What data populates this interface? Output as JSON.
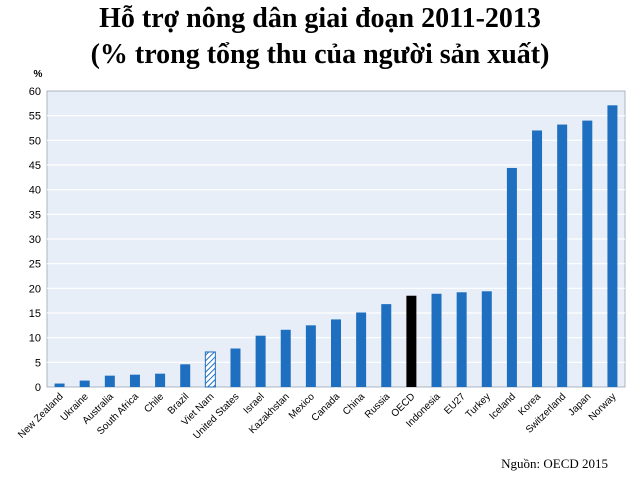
{
  "title_line1": "Hỗ trợ nông dân giai đoạn 2011-2013",
  "title_line2": "(% trong tổng thu của người sản xuất)",
  "source": "Nguồn: OECD 2015",
  "colors": {
    "bar": "#1f6fc0",
    "highlight": "#000000",
    "hatched": "#1f6fc0",
    "plot_bg": "#e8eef7",
    "grid": "#ffffff"
  },
  "chart_data": {
    "type": "bar",
    "ylabel": "%",
    "ylim": [
      0,
      60
    ],
    "yticks": [
      0,
      5,
      10,
      15,
      20,
      25,
      30,
      35,
      40,
      45,
      50,
      55,
      60
    ],
    "grid": true,
    "categories": [
      "New Zealand",
      "Ukraine",
      "Australia",
      "South Africa",
      "Chile",
      "Brazil",
      "Viet Nam",
      "United States",
      "Israel",
      "Kazakhstan",
      "Mexico",
      "Canada",
      "China",
      "Russia",
      "OECD",
      "Indonesia",
      "EU27",
      "Turkey",
      "Iceland",
      "Korea",
      "Switzerland",
      "Japan",
      "Norway"
    ],
    "values": [
      0.7,
      1.3,
      2.3,
      2.5,
      2.7,
      4.6,
      7.1,
      7.8,
      10.4,
      11.6,
      12.5,
      13.7,
      15.1,
      16.8,
      18.5,
      18.9,
      19.2,
      19.4,
      44.4,
      52.0,
      53.2,
      54.0,
      57.1
    ],
    "bar_styles": [
      "solid",
      "solid",
      "solid",
      "solid",
      "solid",
      "solid",
      "hatched",
      "solid",
      "solid",
      "solid",
      "solid",
      "solid",
      "solid",
      "solid",
      "highlight",
      "solid",
      "solid",
      "solid",
      "solid",
      "solid",
      "solid",
      "solid",
      "solid"
    ]
  }
}
